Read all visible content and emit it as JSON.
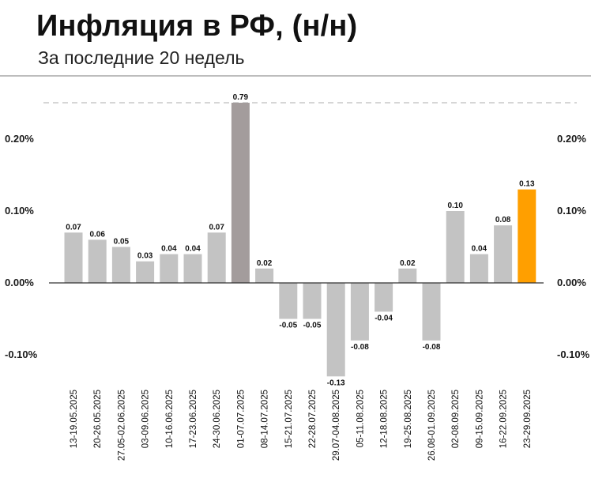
{
  "header": {
    "title": "Инфляция в РФ, (н/н)",
    "subtitle": "За последние 20 недель"
  },
  "colors": {
    "bar_default": "#c3c3c3",
    "bar_highlight": "#ff9f00",
    "bar_outlier": "#a39c9c",
    "zero_line": "#333333",
    "ref_line": "#bdbdbd"
  },
  "chart_data": {
    "type": "bar",
    "title": "Инфляция в РФ, (н/н)",
    "subtitle": "За последние 20 недель",
    "categories": [
      "13-19.05.2025",
      "20-26.05.2025",
      "27.05-02.06.2025",
      "03-09.06.2025",
      "10-16.06.2025",
      "17-23.06.2025",
      "24-30.06.2025",
      "01-07.07.2025",
      "08-14.07.2025",
      "15-21.07.2025",
      "22-28.07.2025",
      "29.07-04.08.2025",
      "05-11.08.2025",
      "12-18.08.2025",
      "19-25.08.2025",
      "26.08-01.09.2025",
      "02-08.09.2025",
      "09-15.09.2025",
      "16-22.09.2025",
      "23-29.09.2025"
    ],
    "values": [
      0.07,
      0.06,
      0.05,
      0.03,
      0.04,
      0.04,
      0.07,
      0.79,
      0.02,
      -0.05,
      -0.05,
      -0.13,
      -0.08,
      -0.04,
      0.02,
      -0.08,
      0.1,
      0.04,
      0.08,
      0.13
    ],
    "data_labels": [
      "0.07",
      "0.06",
      "0.05",
      "0.03",
      "0.04",
      "0.04",
      "0.07",
      "0.79",
      "0.02",
      "-0.05",
      "-0.05",
      "-0.13",
      "-0.08",
      "-0.04",
      "0.02",
      "-0.08",
      "0.10",
      "0.04",
      "0.08",
      "0.13"
    ],
    "y_ticks": [
      0.2,
      0.1,
      0.0,
      -0.1
    ],
    "y_tick_labels": [
      "0.20%",
      "0.10%",
      "0.00%",
      "-0.10%"
    ],
    "ylim": [
      -0.13,
      0.25
    ],
    "axis_break": "top — the 0.79 bar is cut off at a dashed line",
    "highlight_index": 19,
    "outlier_index": 7,
    "grid": false,
    "legend": "none"
  }
}
